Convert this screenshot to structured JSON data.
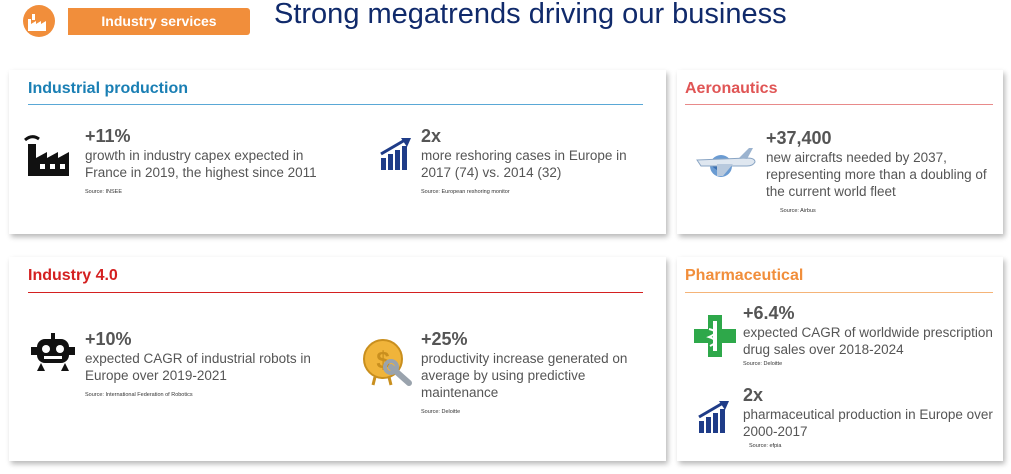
{
  "header": {
    "tag": "Industry services",
    "title": "Strong megatrends driving our business",
    "icon": "factory-icon",
    "tag_color": "#f18e3b",
    "title_color": "#102a6b"
  },
  "sections": {
    "industrial_production": {
      "title": "Industrial production",
      "color": "#1a7fb4",
      "stats": [
        {
          "value": "+11%",
          "description": "growth in industry capex expected in France in 2019, the highest since 2011",
          "source": "Source: INSEE",
          "icon": "factory-icon"
        },
        {
          "value": "2x",
          "description": "more reshoring cases in Europe in 2017 (74) vs. 2014 (32)",
          "source": "Source: European reshoring monitor",
          "icon": "growth-chart-icon"
        }
      ]
    },
    "aeronautics": {
      "title": "Aeronautics",
      "color": "#e05555",
      "stats": [
        {
          "value": "+37,400",
          "description": "new aircrafts needed by 2037, representing more than a doubling of the current world fleet",
          "source": "Source: Airbus",
          "icon": "airplane-globe-icon"
        }
      ]
    },
    "industry_40": {
      "title": "Industry 4.0",
      "color": "#d42020",
      "stats": [
        {
          "value": "+10%",
          "description": "expected CAGR of industrial robots in Europe over 2019-2021",
          "source": "Source: International Federation of Robotics",
          "icon": "robot-icon"
        },
        {
          "value": "+25%",
          "description": "productivity increase generated on average by using predictive maintenance",
          "source": "Source: Deloitte",
          "icon": "coin-wrench-icon"
        }
      ]
    },
    "pharmaceutical": {
      "title": "Pharmaceutical",
      "color": "#f18e3b",
      "stats": [
        {
          "value": "+6.4%",
          "description": "expected CAGR of worldwide prescription drug sales over 2018-2024",
          "source": "Source: Deloitte",
          "icon": "pharmacy-cross-icon"
        },
        {
          "value": "2x",
          "description": "pharmaceutical production in Europe over 2000-2017",
          "source": "Source: efpia",
          "icon": "growth-chart-icon"
        }
      ]
    }
  }
}
